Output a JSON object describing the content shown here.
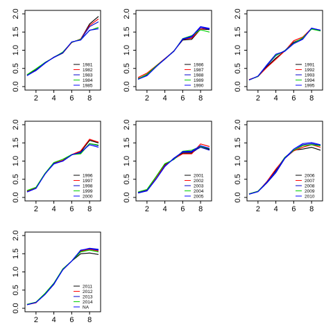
{
  "figure": {
    "panel_count": 7,
    "layout": "3x3 grid, 7 panels filled row-wise"
  },
  "chart_data": [
    {
      "type": "line",
      "xlim": [
        1,
        9
      ],
      "ylim": [
        0,
        2
      ],
      "xticks": [
        2,
        4,
        6,
        8
      ],
      "yticks": [
        0.0,
        0.5,
        1.0,
        1.5,
        2.0
      ],
      "grid": false,
      "legend_position": "bottom-right",
      "x": [
        1,
        2,
        3,
        4,
        5,
        6,
        7,
        8,
        9
      ],
      "series": [
        {
          "name": "1981",
          "color": "#000000",
          "values": [
            0.32,
            0.46,
            0.66,
            0.8,
            0.92,
            1.22,
            1.3,
            1.72,
            1.93
          ]
        },
        {
          "name": "1982",
          "color": "#ff0000",
          "values": [
            0.31,
            0.45,
            0.65,
            0.81,
            0.93,
            1.21,
            1.31,
            1.68,
            1.86
          ]
        },
        {
          "name": "1983",
          "color": "#0000cd",
          "values": [
            0.31,
            0.44,
            0.64,
            0.81,
            0.94,
            1.22,
            1.3,
            1.65,
            1.78
          ]
        },
        {
          "name": "1984",
          "color": "#00cd00",
          "values": [
            0.33,
            0.49,
            0.66,
            0.8,
            0.95,
            1.22,
            1.3,
            1.54,
            1.63
          ]
        },
        {
          "name": "1985",
          "color": "#0000ff",
          "values": [
            0.3,
            0.45,
            0.65,
            0.8,
            0.93,
            1.23,
            1.28,
            1.55,
            1.59
          ]
        }
      ]
    },
    {
      "type": "line",
      "xlim": [
        1,
        9
      ],
      "ylim": [
        0,
        2
      ],
      "xticks": [
        2,
        4,
        6,
        8
      ],
      "yticks": [
        0.0,
        0.5,
        1.0,
        1.5,
        2.0
      ],
      "grid": false,
      "legend_position": "bottom-right",
      "x": [
        1,
        2,
        3,
        4,
        5,
        6,
        7,
        8,
        9
      ],
      "series": [
        {
          "name": "1986",
          "color": "#000000",
          "values": [
            0.22,
            0.32,
            0.55,
            0.76,
            0.98,
            1.28,
            1.3,
            1.58,
            1.57
          ]
        },
        {
          "name": "1987",
          "color": "#ff0000",
          "values": [
            0.25,
            0.37,
            0.57,
            0.77,
            0.97,
            1.3,
            1.33,
            1.58,
            1.6
          ]
        },
        {
          "name": "1988",
          "color": "#0000cd",
          "values": [
            0.2,
            0.33,
            0.55,
            0.75,
            0.97,
            1.3,
            1.36,
            1.62,
            1.58
          ]
        },
        {
          "name": "1989",
          "color": "#00cd00",
          "values": [
            0.21,
            0.34,
            0.56,
            0.76,
            0.97,
            1.32,
            1.4,
            1.56,
            1.5
          ]
        },
        {
          "name": "1990",
          "color": "#0000ff",
          "values": [
            0.2,
            0.3,
            0.54,
            0.76,
            0.97,
            1.31,
            1.38,
            1.65,
            1.6
          ]
        }
      ]
    },
    {
      "type": "line",
      "xlim": [
        1,
        9
      ],
      "ylim": [
        0,
        2
      ],
      "xticks": [
        2,
        4,
        6,
        8
      ],
      "yticks": [
        0.0,
        0.5,
        1.0,
        1.5,
        2.0
      ],
      "grid": false,
      "legend_position": "bottom-right",
      "x": [
        1,
        2,
        3,
        4,
        5,
        6,
        7,
        8,
        9
      ],
      "series": [
        {
          "name": "1991",
          "color": "#000000",
          "values": [
            0.19,
            0.28,
            0.55,
            0.78,
            0.98,
            1.22,
            1.32,
            1.6,
            1.55
          ]
        },
        {
          "name": "1992",
          "color": "#ff0000",
          "values": [
            0.19,
            0.28,
            0.53,
            0.75,
            0.98,
            1.26,
            1.36,
            1.6,
            1.53
          ]
        },
        {
          "name": "1993",
          "color": "#0000cd",
          "values": [
            0.18,
            0.28,
            0.58,
            0.85,
            0.99,
            1.2,
            1.31,
            1.6,
            1.55
          ]
        },
        {
          "name": "1994",
          "color": "#00cd00",
          "values": [
            0.18,
            0.28,
            0.6,
            0.86,
            0.98,
            1.19,
            1.34,
            1.58,
            1.53
          ]
        },
        {
          "name": "1995",
          "color": "#0000ff",
          "values": [
            0.18,
            0.29,
            0.6,
            0.89,
            0.97,
            1.18,
            1.3,
            1.61,
            1.55
          ]
        }
      ]
    },
    {
      "type": "line",
      "xlim": [
        1,
        9
      ],
      "ylim": [
        0,
        2
      ],
      "xticks": [
        2,
        4,
        6,
        8
      ],
      "yticks": [
        0.0,
        0.5,
        1.0,
        1.5,
        2.0
      ],
      "grid": false,
      "legend_position": "bottom-right",
      "x": [
        1,
        2,
        3,
        4,
        5,
        6,
        7,
        8,
        9
      ],
      "series": [
        {
          "name": "1996",
          "color": "#000000",
          "values": [
            0.17,
            0.27,
            0.64,
            0.95,
            1.0,
            1.17,
            1.25,
            1.57,
            1.5
          ]
        },
        {
          "name": "1997",
          "color": "#ff0000",
          "values": [
            0.17,
            0.27,
            0.65,
            0.94,
            1.02,
            1.18,
            1.28,
            1.6,
            1.52
          ]
        },
        {
          "name": "1998",
          "color": "#0000cd",
          "values": [
            0.15,
            0.25,
            0.65,
            0.92,
            1.0,
            1.18,
            1.22,
            1.48,
            1.42
          ]
        },
        {
          "name": "1999",
          "color": "#00cd00",
          "values": [
            0.19,
            0.28,
            0.66,
            0.96,
            1.05,
            1.18,
            1.2,
            1.48,
            1.44
          ]
        },
        {
          "name": "2000",
          "color": "#0000ff",
          "values": [
            0.15,
            0.25,
            0.64,
            0.93,
            1.0,
            1.17,
            1.24,
            1.45,
            1.38
          ]
        }
      ]
    },
    {
      "type": "line",
      "xlim": [
        1,
        9
      ],
      "ylim": [
        0,
        2
      ],
      "xticks": [
        2,
        4,
        6,
        8
      ],
      "yticks": [
        0.0,
        0.5,
        1.0,
        1.5,
        2.0
      ],
      "grid": false,
      "legend_position": "bottom-right",
      "x": [
        1,
        2,
        3,
        4,
        5,
        6,
        7,
        8,
        9
      ],
      "series": [
        {
          "name": "2001",
          "color": "#000000",
          "values": [
            0.13,
            0.2,
            0.55,
            0.9,
            1.05,
            1.22,
            1.22,
            1.4,
            1.32
          ]
        },
        {
          "name": "2002",
          "color": "#ff0000",
          "values": [
            0.14,
            0.21,
            0.55,
            0.88,
            1.06,
            1.2,
            1.2,
            1.47,
            1.4
          ]
        },
        {
          "name": "2003",
          "color": "#0000cd",
          "values": [
            0.12,
            0.18,
            0.5,
            0.85,
            1.08,
            1.25,
            1.25,
            1.38,
            1.3
          ]
        },
        {
          "name": "2004",
          "color": "#00cd00",
          "values": [
            0.15,
            0.22,
            0.57,
            0.93,
            1.04,
            1.27,
            1.3,
            1.4,
            1.34
          ]
        },
        {
          "name": "2005",
          "color": "#0000ff",
          "values": [
            0.13,
            0.19,
            0.5,
            0.86,
            1.06,
            1.26,
            1.27,
            1.42,
            1.35
          ]
        }
      ]
    },
    {
      "type": "line",
      "xlim": [
        1,
        9
      ],
      "ylim": [
        0,
        2
      ],
      "xticks": [
        2,
        4,
        6,
        8
      ],
      "yticks": [
        0.0,
        0.5,
        1.0,
        1.5,
        2.0
      ],
      "grid": false,
      "legend_position": "bottom-right",
      "x": [
        1,
        2,
        3,
        4,
        5,
        6,
        7,
        8,
        9
      ],
      "series": [
        {
          "name": "2006",
          "color": "#000000",
          "values": [
            0.1,
            0.17,
            0.42,
            0.75,
            1.1,
            1.3,
            1.33,
            1.38,
            1.3
          ]
        },
        {
          "name": "2007",
          "color": "#ff0000",
          "values": [
            0.1,
            0.16,
            0.44,
            0.78,
            1.08,
            1.28,
            1.38,
            1.45,
            1.38
          ]
        },
        {
          "name": "2008",
          "color": "#0000cd",
          "values": [
            0.09,
            0.16,
            0.4,
            0.68,
            1.07,
            1.3,
            1.45,
            1.48,
            1.43
          ]
        },
        {
          "name": "2009",
          "color": "#00cd00",
          "values": [
            0.1,
            0.17,
            0.42,
            0.72,
            1.1,
            1.3,
            1.42,
            1.45,
            1.42
          ]
        },
        {
          "name": "2010",
          "color": "#0000ff",
          "values": [
            0.09,
            0.16,
            0.42,
            0.72,
            1.08,
            1.33,
            1.48,
            1.51,
            1.45
          ]
        }
      ]
    },
    {
      "type": "line",
      "xlim": [
        1,
        9
      ],
      "ylim": [
        0,
        2
      ],
      "xticks": [
        2,
        4,
        6,
        8
      ],
      "yticks": [
        0.0,
        0.5,
        1.0,
        1.5,
        2.0
      ],
      "grid": false,
      "legend_position": "bottom-right",
      "x": [
        1,
        2,
        3,
        4,
        5,
        6,
        7,
        8,
        9
      ],
      "series": [
        {
          "name": "2011",
          "color": "#000000",
          "values": [
            0.1,
            0.16,
            0.38,
            0.66,
            1.08,
            1.3,
            1.5,
            1.52,
            1.48
          ]
        },
        {
          "name": "2012",
          "color": "#ff0000",
          "values": [
            0.1,
            0.15,
            0.4,
            0.68,
            1.06,
            1.3,
            1.57,
            1.62,
            1.58
          ]
        },
        {
          "name": "2013",
          "color": "#0000cd",
          "values": [
            0.1,
            0.16,
            0.38,
            0.66,
            1.06,
            1.3,
            1.59,
            1.65,
            1.62
          ]
        },
        {
          "name": "2014",
          "color": "#00cd00",
          "values": [
            0.11,
            0.17,
            0.41,
            0.69,
            1.08,
            1.3,
            1.55,
            1.6,
            1.55
          ]
        },
        {
          "name": "NA",
          "color": "#0000ff",
          "values": [
            0.1,
            0.16,
            0.38,
            0.67,
            1.06,
            1.3,
            1.6,
            1.64,
            1.6
          ]
        }
      ]
    }
  ]
}
